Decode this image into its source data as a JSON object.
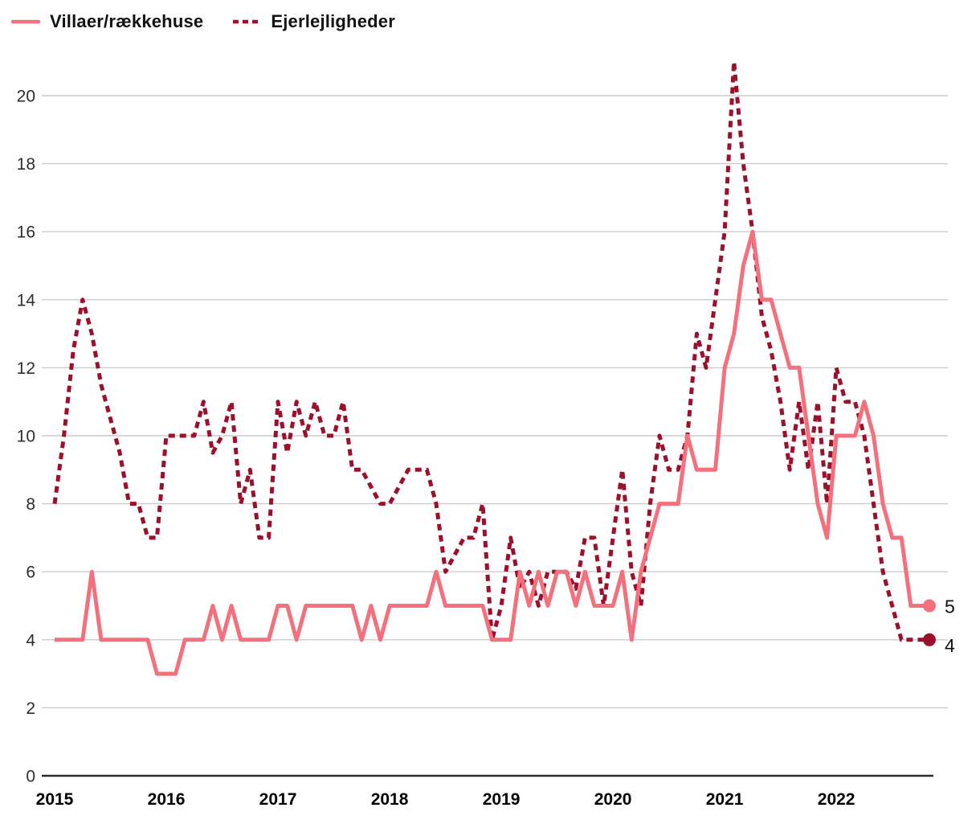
{
  "legend": {
    "items": [
      {
        "label": "Villaer/rækkehuse",
        "style": "solid"
      },
      {
        "label": "Ejerlejligheder",
        "style": "dashed"
      }
    ]
  },
  "colors": {
    "villaer": "#F4707C",
    "ejerlejligheder": "#9C102B",
    "grid": "#CCCCCC",
    "axis": "#2B2B2B",
    "y_tick_text": "#2E2E2E",
    "x_tick_text": "#000000",
    "end_label_text": "#111111",
    "background": "#FFFFFF"
  },
  "chart_data": {
    "type": "line",
    "title": "",
    "xlabel": "",
    "ylabel": "",
    "x_unit": "month",
    "x_start": "2015-01",
    "x_end": "2022-11",
    "x_tick_labels": [
      "2015",
      "2016",
      "2017",
      "2018",
      "2019",
      "2020",
      "2021",
      "2022"
    ],
    "y_ticks": [
      0,
      2,
      4,
      6,
      8,
      10,
      12,
      14,
      16,
      18,
      20
    ],
    "ylim": [
      0,
      21
    ],
    "grid": "horizontal",
    "legend_position": "top-left",
    "series": [
      {
        "name": "Villaer/rækkehuse",
        "style": "solid",
        "end_label": "5",
        "values": [
          4,
          4,
          4,
          4,
          6,
          4,
          4,
          4,
          4,
          4,
          4,
          3,
          3,
          3,
          4,
          4,
          4,
          5,
          4,
          5,
          4,
          4,
          4,
          4,
          5,
          5,
          4,
          5,
          5,
          5,
          5,
          5,
          5,
          4,
          5,
          4,
          5,
          5,
          5,
          5,
          5,
          6,
          5,
          5,
          5,
          5,
          5,
          4,
          4,
          4,
          6,
          5,
          6,
          5,
          6,
          6,
          5,
          6,
          5,
          5,
          5,
          6,
          4,
          6,
          7,
          8,
          8,
          8,
          10,
          9,
          9,
          9,
          12,
          13,
          15,
          16,
          14,
          14,
          13,
          12,
          12,
          10,
          8,
          7,
          10,
          10,
          10,
          11,
          10,
          8,
          7,
          7,
          5,
          5,
          5
        ]
      },
      {
        "name": "Ejerlejligheder",
        "style": "dashed",
        "end_label": "4",
        "values": [
          8,
          10,
          12.5,
          14,
          13,
          11.5,
          10.5,
          9.5,
          8,
          8,
          7,
          7,
          10,
          10,
          10,
          10,
          11,
          9.5,
          10,
          11,
          8,
          9,
          7,
          7,
          11,
          9.5,
          11,
          10,
          11,
          10,
          10,
          11,
          9,
          9,
          8.5,
          8,
          8,
          8.5,
          9,
          9,
          9,
          8,
          6,
          6.5,
          7,
          7,
          8,
          4,
          5,
          7,
          5.5,
          6,
          5,
          6,
          6,
          6,
          5.5,
          7,
          7,
          5,
          7,
          9,
          6,
          5,
          8,
          10,
          9,
          9,
          10,
          13,
          12,
          14,
          16,
          21,
          18,
          16,
          13.5,
          12.5,
          11,
          9,
          11,
          9,
          11,
          8,
          12,
          11,
          11,
          10,
          8,
          6,
          5,
          4,
          4,
          4,
          4
        ]
      }
    ]
  }
}
